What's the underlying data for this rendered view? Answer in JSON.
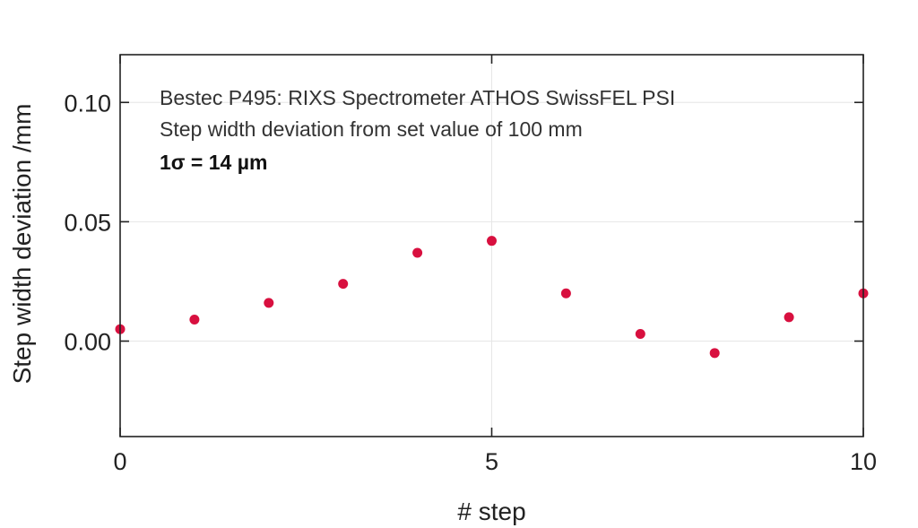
{
  "chart_data": {
    "type": "scatter",
    "annotations": [
      "Bestec P495: RIXS Spectrometer ATHOS SwissFEL PSI",
      "Step width deviation from set value of 100 mm",
      "1σ = 14 µm"
    ],
    "xlabel": "# step",
    "ylabel": "Step width deviation /mm",
    "xlim": [
      0,
      10
    ],
    "ylim": [
      -0.04,
      0.12
    ],
    "x_ticks": [
      0,
      5,
      10
    ],
    "x_tick_labels": [
      "0",
      "5",
      "10"
    ],
    "y_ticks": [
      0.0,
      0.05,
      0.1
    ],
    "y_tick_labels": [
      "0.00",
      "0.05",
      "0.10"
    ],
    "grid": true,
    "series": [
      {
        "x": [
          0,
          1,
          2,
          3,
          4,
          5,
          6,
          7,
          8,
          9,
          10
        ],
        "y": [
          0.005,
          0.009,
          0.016,
          0.024,
          0.037,
          0.042,
          0.02,
          0.003,
          -0.005,
          0.01,
          0.02
        ],
        "color": "#d8103f"
      }
    ]
  }
}
